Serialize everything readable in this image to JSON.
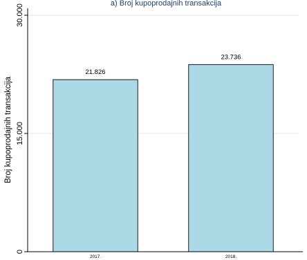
{
  "chart_data": {
    "type": "bar",
    "title": "a) Broj kupoprodajnih transakcija",
    "xlabel": "",
    "ylabel": "Broj kupoprodajnih transakcija",
    "categories": [
      "2017.",
      "2018."
    ],
    "values": [
      21826,
      23736
    ],
    "value_labels": [
      "21.826",
      "23.736"
    ],
    "ylim": [
      0,
      30000
    ],
    "yticks": [
      {
        "value": 0,
        "label": "0"
      },
      {
        "value": 15000,
        "label": "15.000"
      },
      {
        "value": 30000,
        "label": "30.000"
      }
    ],
    "grid": true,
    "legend": "none",
    "colors": {
      "bar_fill": "#add8e6",
      "bar_stroke": "#1a1a1a",
      "grid": "#e6e6e6",
      "title": "#1f3f6b"
    }
  }
}
